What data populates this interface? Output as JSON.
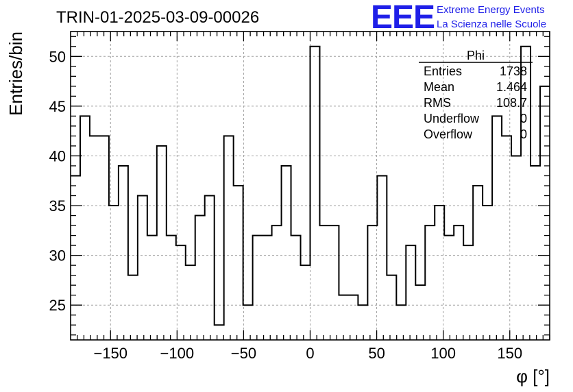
{
  "chart_data": {
    "type": "histogram",
    "title": "TRIN-01-2025-03-09-00026",
    "xlabel": "φ [°]",
    "ylabel": "Entries/bin",
    "xlim": [
      -180,
      180
    ],
    "ylim": [
      21.5,
      52.5
    ],
    "grid": true,
    "bin_edges_start": -180,
    "bin_width": 7.2,
    "values": [
      38,
      44,
      42,
      42,
      35,
      39,
      28,
      36,
      32,
      41,
      32,
      31,
      29,
      34,
      36,
      23,
      42,
      37,
      25,
      32,
      32,
      33,
      39,
      32,
      29,
      51,
      33,
      33,
      26,
      26,
      25,
      33,
      38,
      28,
      25,
      31,
      27,
      33,
      35,
      32,
      33,
      31,
      37,
      35,
      44,
      42,
      40,
      51,
      39,
      47
    ],
    "x_ticks": [
      -150,
      -100,
      -50,
      0,
      50,
      100,
      150
    ],
    "x_tick_labels": [
      "−150",
      "−100",
      "−50",
      "0",
      "50",
      "100",
      "150"
    ],
    "y_ticks": [
      25,
      30,
      35,
      40,
      45,
      50
    ],
    "y_tick_labels": [
      "25",
      "30",
      "35",
      "40",
      "45",
      "50"
    ],
    "stats_box": {
      "name": "Phi",
      "rows": [
        {
          "label": "Entries",
          "value": "1738"
        },
        {
          "label": "Mean",
          "value": "1.464"
        },
        {
          "label": "RMS",
          "value": "108.7"
        },
        {
          "label": "Underflow",
          "value": "0"
        },
        {
          "label": "Overflow",
          "value": "0"
        }
      ]
    }
  },
  "logo": {
    "mark": "EEE",
    "line1": "Extreme Energy Events",
    "line2": "La Scienza nelle Scuole",
    "color": "#1f1fe8"
  }
}
